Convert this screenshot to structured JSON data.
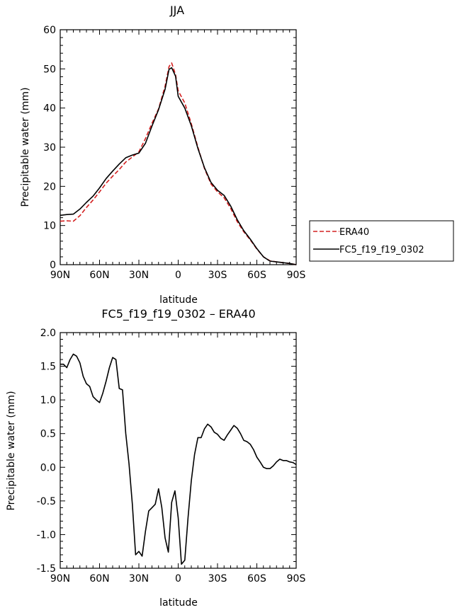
{
  "chart_data": [
    {
      "type": "line",
      "title": "JJA",
      "xlabel": "latitude",
      "ylabel": "Precipitable water (mm)",
      "xlim": [
        90,
        -90
      ],
      "ylim": [
        0,
        60
      ],
      "xticks": [
        {
          "value": 90,
          "label": "90N"
        },
        {
          "value": 60,
          "label": "60N"
        },
        {
          "value": 30,
          "label": "30N"
        },
        {
          "value": 0,
          "label": "0"
        },
        {
          "value": -30,
          "label": "30S"
        },
        {
          "value": -60,
          "label": "60S"
        },
        {
          "value": -90,
          "label": "90S"
        }
      ],
      "yticks": [
        0,
        10,
        20,
        30,
        40,
        50,
        60
      ],
      "legend": "outside-right",
      "series": [
        {
          "name": "ERA40",
          "color": "#d42020",
          "style": "dashed",
          "x": [
            90,
            85,
            80,
            75,
            70,
            65,
            60,
            55,
            50,
            45,
            40,
            35,
            30,
            25,
            20,
            15,
            10,
            7,
            5,
            2,
            0,
            -5,
            -10,
            -15,
            -20,
            -25,
            -30,
            -35,
            -40,
            -45,
            -50,
            -55,
            -60,
            -65,
            -70,
            -75,
            -80,
            -85,
            -90
          ],
          "y": [
            11.1,
            11.2,
            11.1,
            12.5,
            14.6,
            16.5,
            18.6,
            20.8,
            22.6,
            24.3,
            26.2,
            27.5,
            28.8,
            32.2,
            36.1,
            39.8,
            45.6,
            50.6,
            51.5,
            48.5,
            44.4,
            41.3,
            36.0,
            30.0,
            24.6,
            20.6,
            18.6,
            17.1,
            14.4,
            11.0,
            8.4,
            6.3,
            4.0,
            2.0,
            1.0,
            0.7,
            0.5,
            0.3,
            0.0
          ]
        },
        {
          "name": "FC5_f19_f19_0302",
          "color": "#000000",
          "style": "solid",
          "x": [
            90,
            85,
            80,
            75,
            70,
            65,
            60,
            55,
            50,
            45,
            40,
            35,
            30,
            25,
            20,
            15,
            10,
            7,
            5,
            2,
            0,
            -5,
            -10,
            -15,
            -20,
            -25,
            -30,
            -35,
            -40,
            -45,
            -50,
            -55,
            -60,
            -65,
            -70,
            -75,
            -80,
            -85,
            -90
          ],
          "y": [
            12.6,
            12.8,
            12.9,
            14.2,
            15.9,
            17.5,
            19.6,
            22.0,
            23.9,
            25.7,
            27.3,
            28.0,
            28.5,
            31.0,
            35.4,
            39.6,
            44.8,
            49.9,
            50.3,
            48.1,
            43.0,
            40.0,
            35.5,
            29.7,
            24.8,
            21.0,
            19.0,
            17.7,
            15.0,
            11.5,
            8.7,
            6.5,
            4.1,
            2.0,
            0.9,
            0.7,
            0.5,
            0.3,
            0.0
          ]
        }
      ]
    },
    {
      "type": "line",
      "title": "FC5_f19_f19_0302 – ERA40",
      "xlabel": "latitude",
      "ylabel": "Precipitable water (mm)",
      "xlim": [
        90,
        -90
      ],
      "ylim": [
        -1.5,
        2.0
      ],
      "xticks": [
        {
          "value": 90,
          "label": "90N"
        },
        {
          "value": 60,
          "label": "60N"
        },
        {
          "value": 30,
          "label": "30N"
        },
        {
          "value": 0,
          "label": "0"
        },
        {
          "value": -30,
          "label": "30S"
        },
        {
          "value": -60,
          "label": "60S"
        },
        {
          "value": -90,
          "label": "90S"
        }
      ],
      "yticks": [
        {
          "value": -1.5,
          "label": "-1.5"
        },
        {
          "value": -1.0,
          "label": "-1.0"
        },
        {
          "value": -0.5,
          "label": "-0.5"
        },
        {
          "value": 0.0,
          "label": "0.0"
        },
        {
          "value": 0.5,
          "label": "0.5"
        },
        {
          "value": 1.0,
          "label": "1.0"
        },
        {
          "value": 1.5,
          "label": "1.5"
        },
        {
          "value": 2.0,
          "label": "2.0"
        }
      ],
      "series": [
        {
          "color": "#000000",
          "style": "solid",
          "x": [
            90,
            87.5,
            85,
            82.5,
            80,
            77.5,
            75,
            72.5,
            70,
            67.5,
            65,
            62.5,
            60,
            57.5,
            55,
            52.5,
            50,
            47.5,
            45,
            42.5,
            40,
            37.5,
            35,
            32.5,
            30,
            27.5,
            25,
            22.5,
            20,
            17.5,
            15,
            12.5,
            10,
            7.5,
            5,
            2.5,
            0,
            -2.5,
            -5,
            -7.5,
            -10,
            -12.5,
            -15,
            -17.5,
            -20,
            -22.5,
            -25,
            -27.5,
            -30,
            -32.5,
            -35,
            -37.5,
            -40,
            -42.5,
            -45,
            -47.5,
            -50,
            -52.5,
            -55,
            -57.5,
            -60,
            -62.5,
            -65,
            -67.5,
            -70,
            -72.5,
            -75,
            -77.5,
            -80,
            -82.5,
            -85,
            -87.5,
            -90
          ],
          "y": [
            1.53,
            1.53,
            1.48,
            1.6,
            1.68,
            1.65,
            1.55,
            1.35,
            1.24,
            1.2,
            1.05,
            1.0,
            0.96,
            1.1,
            1.28,
            1.48,
            1.63,
            1.6,
            1.17,
            1.15,
            0.5,
            0.05,
            -0.55,
            -1.3,
            -1.25,
            -1.32,
            -0.95,
            -0.65,
            -0.6,
            -0.55,
            -0.32,
            -0.6,
            -1.05,
            -1.26,
            -0.52,
            -0.35,
            -0.75,
            -1.44,
            -1.38,
            -0.75,
            -0.2,
            0.19,
            0.44,
            0.44,
            0.57,
            0.64,
            0.6,
            0.52,
            0.49,
            0.43,
            0.4,
            0.48,
            0.55,
            0.62,
            0.58,
            0.5,
            0.4,
            0.38,
            0.34,
            0.26,
            0.15,
            0.08,
            0.0,
            -0.02,
            -0.02,
            0.02,
            0.08,
            0.12,
            0.1,
            0.1,
            0.08,
            0.07,
            0.04
          ]
        }
      ]
    }
  ]
}
